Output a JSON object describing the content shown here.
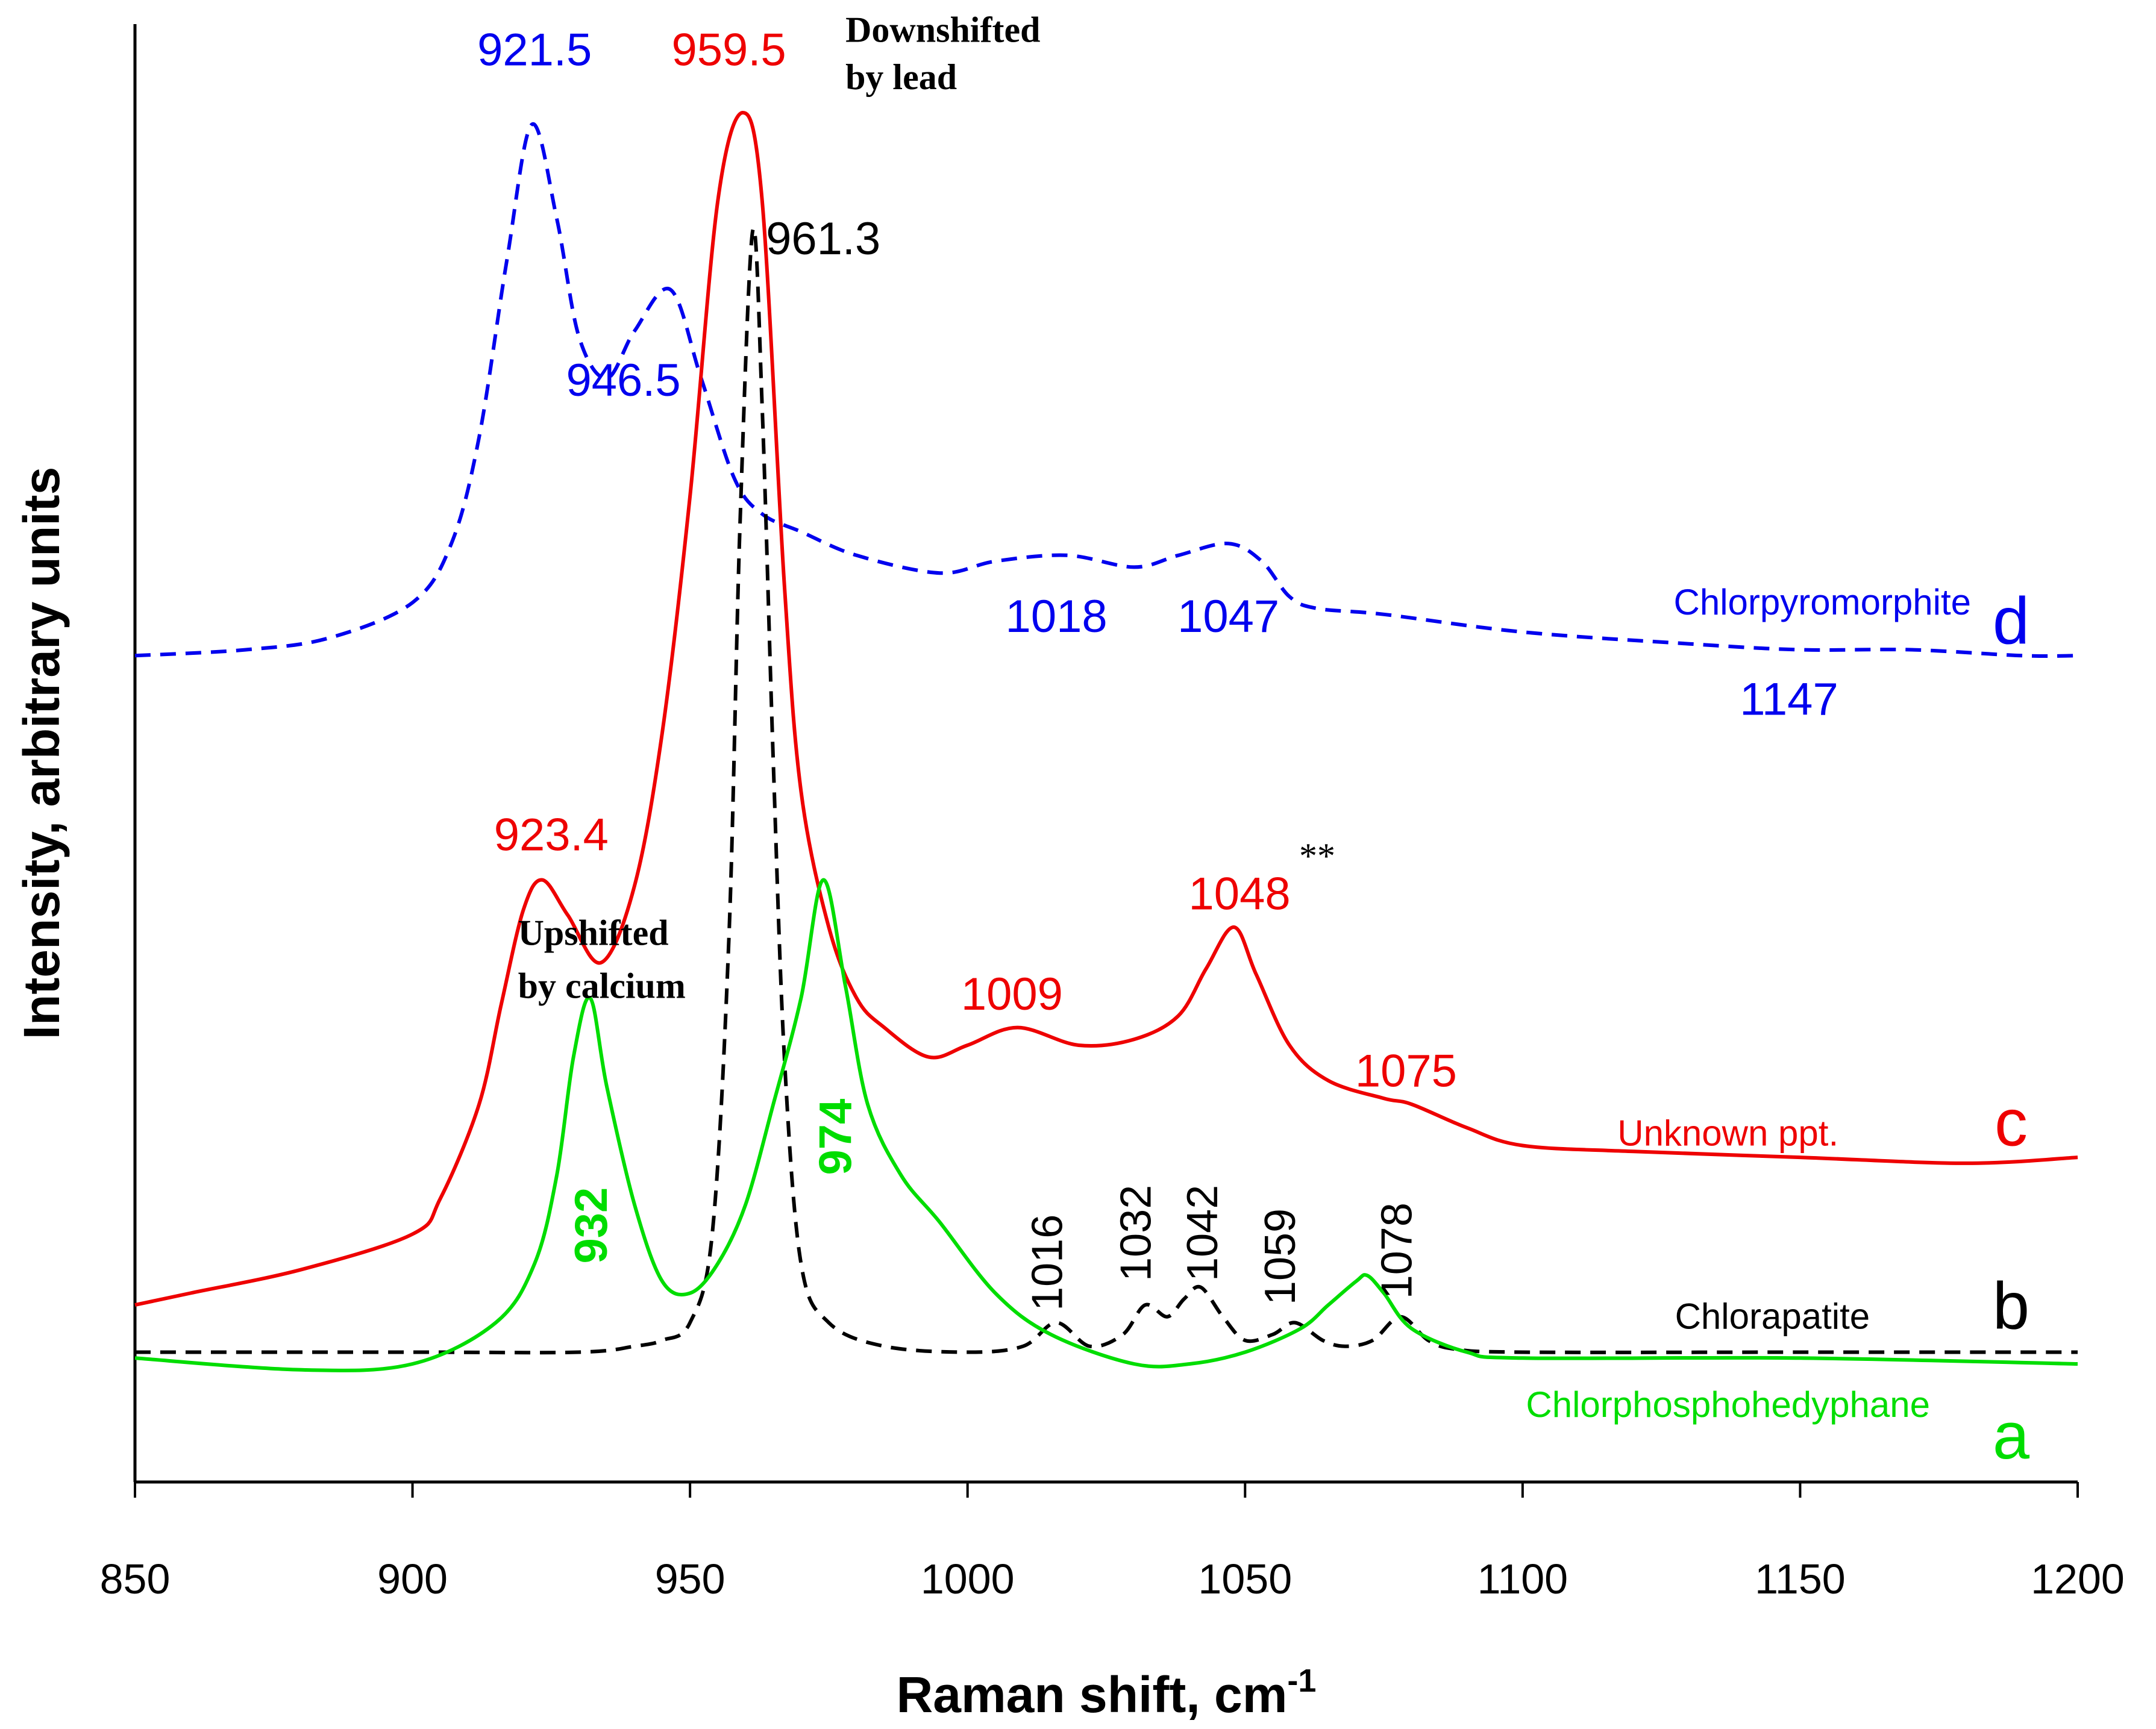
{
  "chart_data": {
    "type": "line",
    "title": "",
    "xlabel": "Raman shift, cm",
    "xlabel_superscript": "-1",
    "ylabel": "Intensity, arbitrary units",
    "xlim": [
      850,
      1200
    ],
    "ylim": [
      -0.22,
      2.25
    ],
    "xticks": [
      850,
      900,
      950,
      1000,
      1050,
      1100,
      1150,
      1200
    ],
    "grid": false,
    "legend": "none",
    "colors": {
      "a": "#00dd00",
      "b": "#000000",
      "c": "#ee0000",
      "d": "#0000ee",
      "axis": "#000000"
    },
    "series": [
      {
        "id": "d",
        "letter": "d",
        "name": "Chlorpyromorphite",
        "color": "#0000ee",
        "dash": true,
        "x": [
          850,
          870,
          885,
          900,
          907,
          912,
          917,
          921.5,
          926,
          930,
          935,
          940,
          946.5,
          952,
          958,
          963,
          970,
          980,
          995,
          1005,
          1018,
          1030,
          1038,
          1047,
          1053,
          1058,
          1063,
          1075,
          1100,
          1130,
          1150,
          1170,
          1190,
          1200
        ],
        "y": [
          1.18,
          1.19,
          1.21,
          1.27,
          1.37,
          1.55,
          1.85,
          2.08,
          1.92,
          1.72,
          1.65,
          1.73,
          1.8,
          1.65,
          1.48,
          1.42,
          1.39,
          1.35,
          1.32,
          1.34,
          1.35,
          1.33,
          1.35,
          1.37,
          1.34,
          1.28,
          1.26,
          1.25,
          1.22,
          1.2,
          1.19,
          1.19,
          1.18,
          1.18
        ]
      },
      {
        "id": "c",
        "letter": "c",
        "name": "Unknown ppt.",
        "color": "#ee0000",
        "dash": false,
        "x": [
          850,
          860,
          880,
          900,
          905,
          912,
          916,
          920,
          923.4,
          928,
          934,
          940,
          945,
          950,
          955,
          959.5,
          963,
          967,
          970,
          975,
          980,
          985,
          993,
          1000,
          1009,
          1020,
          1030,
          1038,
          1043,
          1048,
          1052,
          1058,
          1065,
          1075,
          1080,
          1090,
          1100,
          1120,
          1150,
          1180,
          1200
        ],
        "y": [
          0.08,
          0.1,
          0.14,
          0.2,
          0.26,
          0.42,
          0.59,
          0.75,
          0.8,
          0.74,
          0.66,
          0.79,
          1.05,
          1.45,
          1.95,
          2.1,
          1.95,
          1.3,
          0.95,
          0.72,
          0.6,
          0.55,
          0.5,
          0.52,
          0.55,
          0.52,
          0.53,
          0.57,
          0.65,
          0.72,
          0.64,
          0.52,
          0.46,
          0.43,
          0.42,
          0.38,
          0.35,
          0.34,
          0.33,
          0.32,
          0.33
        ]
      },
      {
        "id": "b",
        "letter": "b",
        "name": "Chlorapatite",
        "color": "#000000",
        "dash": true,
        "x": [
          850,
          900,
          930,
          940,
          945,
          950,
          954,
          957,
          959,
          961.3,
          963,
          965,
          967,
          970,
          975,
          985,
          1000,
          1010,
          1016,
          1022,
          1028,
          1032,
          1036,
          1039,
          1042,
          1046,
          1050,
          1055,
          1059,
          1064,
          1068,
          1073,
          1078,
          1083,
          1088,
          1100,
          1150,
          1200
        ],
        "y": [
          0,
          0,
          0,
          0.01,
          0.02,
          0.05,
          0.2,
          0.7,
          1.4,
          1.9,
          1.6,
          1.0,
          0.5,
          0.15,
          0.05,
          0.01,
          0,
          0.01,
          0.05,
          0.01,
          0.03,
          0.08,
          0.06,
          0.09,
          0.11,
          0.06,
          0.02,
          0.03,
          0.05,
          0.02,
          0.01,
          0.02,
          0.06,
          0.02,
          0.005,
          0,
          0,
          0
        ]
      },
      {
        "id": "a",
        "letter": "a",
        "name": "Chlorphosphohedyphane",
        "color": "#00dd00",
        "dash": false,
        "x": [
          850,
          880,
          900,
          915,
          922,
          926,
          929,
          932,
          935,
          940,
          945,
          950,
          955,
          960,
          965,
          970,
          974,
          978,
          982,
          988,
          995,
          1005,
          1015,
          1030,
          1040,
          1050,
          1060,
          1065,
          1070,
          1072,
          1075,
          1080,
          1090,
          1100,
          1150,
          1200
        ],
        "y": [
          -0.01,
          -0.03,
          -0.02,
          0.05,
          0.15,
          0.3,
          0.5,
          0.6,
          0.45,
          0.25,
          0.12,
          0.1,
          0.15,
          0.25,
          0.42,
          0.6,
          0.8,
          0.62,
          0.42,
          0.3,
          0.22,
          0.1,
          0.03,
          -0.02,
          -0.02,
          0,
          0.04,
          0.08,
          0.12,
          0.13,
          0.1,
          0.04,
          0,
          -0.01,
          -0.01,
          -0.02
        ]
      }
    ],
    "annotations": [
      {
        "id": "d_peak1",
        "text": "921.5",
        "color": "#0000ee",
        "style": "sans",
        "x": 922,
        "y": 2.18,
        "anchor": "middle"
      },
      {
        "id": "d_peak2",
        "text": "946.5",
        "color": "#0000ee",
        "style": "sans",
        "x": 938,
        "y": 1.62,
        "anchor": "middle"
      },
      {
        "id": "d_1018",
        "text": "1018",
        "color": "#0000ee",
        "style": "sans",
        "x": 1016,
        "y": 1.22,
        "anchor": "middle"
      },
      {
        "id": "d_1047",
        "text": "1047",
        "color": "#0000ee",
        "style": "sans",
        "x": 1047,
        "y": 1.22,
        "anchor": "middle"
      },
      {
        "id": "d_1147",
        "text": "1147",
        "color": "#0000ee",
        "style": "sans",
        "x": 1148,
        "y": 1.08,
        "anchor": "middle"
      },
      {
        "id": "c_959",
        "text": "959.5",
        "color": "#ee0000",
        "style": "sans",
        "x": 957,
        "y": 2.18,
        "anchor": "middle"
      },
      {
        "id": "c_923",
        "text": "923.4",
        "color": "#ee0000",
        "style": "sans",
        "x": 925,
        "y": 0.85,
        "anchor": "middle"
      },
      {
        "id": "c_1009",
        "text": "1009",
        "color": "#ee0000",
        "style": "sans",
        "x": 1008,
        "y": 0.58,
        "anchor": "middle"
      },
      {
        "id": "c_1048",
        "text": "1048",
        "color": "#ee0000",
        "style": "sans",
        "x": 1049,
        "y": 0.75,
        "anchor": "middle"
      },
      {
        "id": "c_1075",
        "text": "1075",
        "color": "#ee0000",
        "style": "sans",
        "x": 1079,
        "y": 0.45,
        "anchor": "middle"
      },
      {
        "id": "b_961",
        "text": "961.3",
        "color": "#000000",
        "style": "sans",
        "x": 974,
        "y": 1.86,
        "anchor": "middle"
      },
      {
        "id": "stars",
        "text": "**",
        "color": "#000000",
        "style": "serif",
        "x": 1063,
        "y": 0.82,
        "anchor": "middle"
      },
      {
        "id": "down1",
        "text": "Downshifted",
        "color": "#000000",
        "style": "serif-bold",
        "x": 978,
        "y": 2.22,
        "anchor": "start"
      },
      {
        "id": "down2",
        "text": "by lead",
        "color": "#000000",
        "style": "serif-bold",
        "x": 978,
        "y": 2.14,
        "anchor": "start"
      },
      {
        "id": "up1",
        "text": "Upshifted",
        "color": "#000000",
        "style": "serif-bold",
        "x": 919,
        "y": 0.69,
        "anchor": "start"
      },
      {
        "id": "up2",
        "text": "by calcium",
        "color": "#000000",
        "style": "serif-bold",
        "x": 919,
        "y": 0.6,
        "anchor": "start"
      },
      {
        "id": "b_1016",
        "text": "1016",
        "color": "#000000",
        "style": "sans-vertical",
        "x": 1017,
        "y": 0.07,
        "anchor": "start"
      },
      {
        "id": "b_1032",
        "text": "1032",
        "color": "#000000",
        "style": "sans-vertical",
        "x": 1033,
        "y": 0.12,
        "anchor": "start"
      },
      {
        "id": "b_1042",
        "text": "1042",
        "color": "#000000",
        "style": "sans-vertical",
        "x": 1045,
        "y": 0.12,
        "anchor": "start"
      },
      {
        "id": "b_1059",
        "text": "1059",
        "color": "#000000",
        "style": "sans-vertical",
        "x": 1059,
        "y": 0.08,
        "anchor": "start"
      },
      {
        "id": "b_1078",
        "text": "1078",
        "color": "#000000",
        "style": "sans-vertical",
        "x": 1080,
        "y": 0.09,
        "anchor": "start"
      },
      {
        "id": "a_932",
        "text": "932",
        "color": "#00dd00",
        "style": "sans-bold-vertical",
        "x": 935,
        "y": 0.15,
        "anchor": "start"
      },
      {
        "id": "a_974",
        "text": "974",
        "color": "#00dd00",
        "style": "sans-bold-vertical",
        "x": 979,
        "y": 0.3,
        "anchor": "start"
      }
    ],
    "series_labels": [
      {
        "id": "lbl_d",
        "text": "Chlorpyromorphite",
        "color": "#0000ee",
        "x": 1154,
        "y": 1.25
      },
      {
        "id": "lbl_c",
        "text": "Unknown ppt.",
        "color": "#ee0000",
        "x": 1137,
        "y": 0.35
      },
      {
        "id": "lbl_b",
        "text": "Chlorapatite",
        "color": "#000000",
        "x": 1145,
        "y": 0.04
      },
      {
        "id": "lbl_a",
        "text": "Chlorphosphohedyphane",
        "color": "#00dd00",
        "x": 1137,
        "y": -0.11
      }
    ],
    "letters": [
      {
        "id": "let_d",
        "text": "d",
        "color": "#0000ee",
        "x": 1188,
        "y": 1.2
      },
      {
        "id": "let_c",
        "text": "c",
        "color": "#ee0000",
        "x": 1188,
        "y": 0.35
      },
      {
        "id": "let_b",
        "text": "b",
        "color": "#000000",
        "x": 1188,
        "y": 0.04
      },
      {
        "id": "let_a",
        "text": "a",
        "color": "#00dd00",
        "x": 1188,
        "y": -0.18
      }
    ]
  }
}
